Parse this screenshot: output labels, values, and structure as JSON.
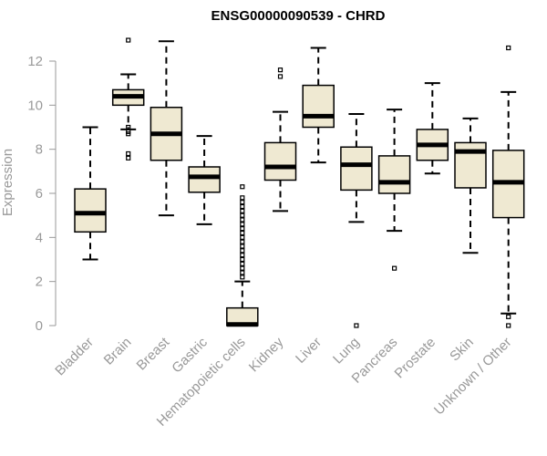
{
  "chart_data": {
    "type": "boxplot",
    "title": "ENSG00000090539 - CHRD",
    "ylabel": "Expression",
    "xlabel": "",
    "ylim": [
      0,
      12.6
    ],
    "yticks": [
      0,
      2,
      4,
      6,
      8,
      10,
      12
    ],
    "grid": false,
    "colors": {
      "box_fill": "#efe9d2",
      "box_stroke": "#000000",
      "median": "#000000",
      "axis": "#999999"
    },
    "categories": [
      "Bladder",
      "Brain",
      "Breast",
      "Gastric",
      "Hematopoietic cells",
      "Kidney",
      "Liver",
      "Lung",
      "Pancreas",
      "Prostate",
      "Skin",
      "Unknown / Other"
    ],
    "boxes": [
      {
        "category": "Bladder",
        "whisker_low": 3.0,
        "q1": 4.25,
        "median": 5.1,
        "q3": 6.2,
        "whisker_high": 9.0,
        "outliers": []
      },
      {
        "category": "Brain",
        "whisker_low": 8.9,
        "q1": 10.0,
        "median": 10.4,
        "q3": 10.7,
        "whisker_high": 11.4,
        "outliers": [
          12.95,
          9.0,
          8.8,
          8.7,
          7.8,
          7.6
        ]
      },
      {
        "category": "Breast",
        "whisker_low": 5.0,
        "q1": 7.5,
        "median": 8.7,
        "q3": 9.9,
        "whisker_high": 12.9,
        "outliers": []
      },
      {
        "category": "Gastric",
        "whisker_low": 4.6,
        "q1": 6.05,
        "median": 6.75,
        "q3": 7.2,
        "whisker_high": 8.6,
        "outliers": []
      },
      {
        "category": "Hematopoietic cells",
        "whisker_low": 0.0,
        "q1": 0.0,
        "median": 0.05,
        "q3": 0.8,
        "whisker_high": 2.0,
        "outliers": [
          2.2,
          2.4,
          2.6,
          2.8,
          3.0,
          3.2,
          3.4,
          3.6,
          3.8,
          4.0,
          4.2,
          4.4,
          4.6,
          4.8,
          5.0,
          5.2,
          5.4,
          5.6,
          5.8,
          6.3
        ]
      },
      {
        "category": "Kidney",
        "whisker_low": 5.2,
        "q1": 6.6,
        "median": 7.2,
        "q3": 8.3,
        "whisker_high": 9.7,
        "outliers": [
          11.3,
          11.6
        ]
      },
      {
        "category": "Liver",
        "whisker_low": 7.4,
        "q1": 9.0,
        "median": 9.5,
        "q3": 10.9,
        "whisker_high": 12.6,
        "outliers": []
      },
      {
        "category": "Lung",
        "whisker_low": 4.7,
        "q1": 6.15,
        "median": 7.3,
        "q3": 8.1,
        "whisker_high": 9.6,
        "outliers": [
          0.0
        ]
      },
      {
        "category": "Pancreas",
        "whisker_low": 4.3,
        "q1": 6.0,
        "median": 6.5,
        "q3": 7.7,
        "whisker_high": 9.8,
        "outliers": [
          2.6
        ]
      },
      {
        "category": "Prostate",
        "whisker_low": 6.9,
        "q1": 7.5,
        "median": 8.2,
        "q3": 8.9,
        "whisker_high": 11.0,
        "outliers": []
      },
      {
        "category": "Skin",
        "whisker_low": 3.3,
        "q1": 6.25,
        "median": 7.9,
        "q3": 8.3,
        "whisker_high": 9.4,
        "outliers": []
      },
      {
        "category": "Unknown / Other",
        "whisker_low": 0.55,
        "q1": 4.9,
        "median": 6.5,
        "q3": 7.95,
        "whisker_high": 10.6,
        "outliers": [
          12.6,
          0.4,
          0.0
        ]
      }
    ]
  }
}
